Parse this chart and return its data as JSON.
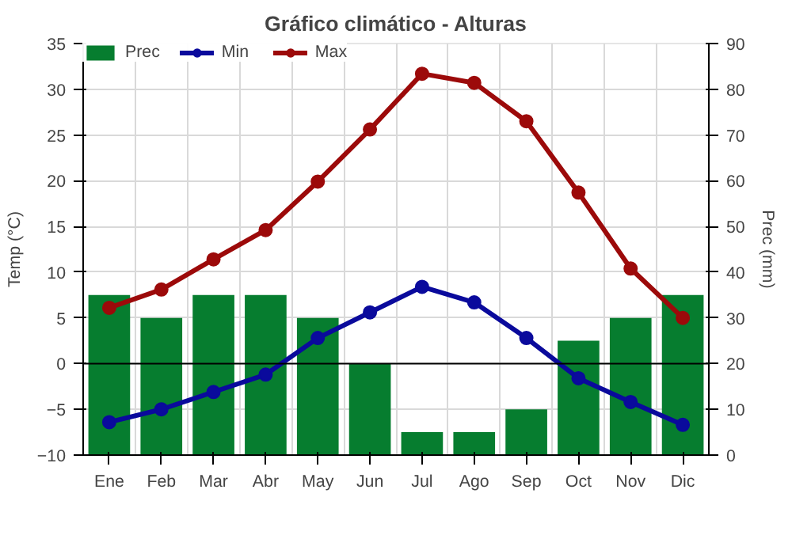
{
  "chart_data": {
    "type": "line",
    "title": "Gráfico climático - Alturas",
    "ylabel": "Temp (°C)",
    "y2label": "Prec (mm)",
    "categories": [
      "Ene",
      "Feb",
      "Mar",
      "Abr",
      "May",
      "Jun",
      "Jul",
      "Ago",
      "Sep",
      "Oct",
      "Nov",
      "Dic"
    ],
    "series": [
      {
        "name": "Prec",
        "type": "bar",
        "axis": "y2",
        "color": "#067d2f",
        "values": [
          35,
          30,
          35,
          35,
          30,
          20,
          5,
          5,
          10,
          25,
          30,
          35
        ]
      },
      {
        "name": "Min",
        "color": "#0a0a9c",
        "values": [
          -6.4,
          -5.0,
          -3.1,
          -1.2,
          2.8,
          5.6,
          8.4,
          6.7,
          2.8,
          -1.6,
          -4.2,
          -6.7
        ]
      },
      {
        "name": "Max",
        "color": "#9c0a0a",
        "values": [
          6.1,
          8.1,
          11.4,
          14.6,
          19.9,
          25.6,
          31.7,
          30.7,
          26.5,
          18.7,
          10.4,
          5.0
        ]
      }
    ],
    "ylim": [
      -10,
      35
    ],
    "yticks": [
      -10,
      -5,
      0,
      5,
      10,
      15,
      20,
      25,
      30,
      35
    ],
    "y2lim": [
      0,
      90
    ],
    "y2ticks": [
      0,
      10,
      20,
      30,
      40,
      50,
      60,
      70,
      80,
      90
    ],
    "ref_lines": [
      {
        "axis": "y",
        "value": 0,
        "color": "#000000"
      }
    ],
    "grid": true,
    "legend": "top left",
    "marker": "circle"
  }
}
